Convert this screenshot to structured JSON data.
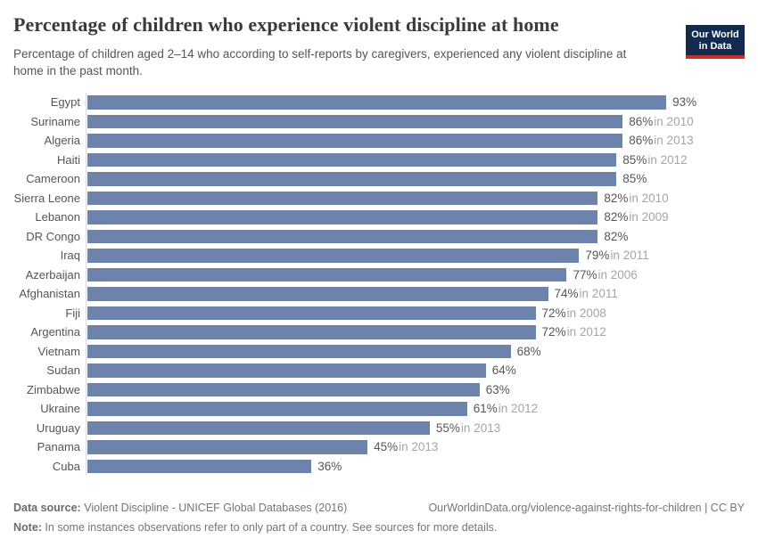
{
  "header": {
    "title": "Percentage of children who experience violent discipline at home",
    "subtitle": "Percentage of children aged 2–14 who according to self-reports by caregivers, experienced any violent discipline at home in the past month.",
    "logo": {
      "line1": "Our World",
      "line2": "in Data",
      "bg_color": "#122b4e",
      "stripe_color": "#d42b20"
    }
  },
  "chart_data": {
    "type": "bar",
    "orientation": "horizontal",
    "title": "Percentage of children who experience violent discipline at home",
    "xlabel": "",
    "ylabel": "",
    "xlim": [
      0,
      100
    ],
    "grid": false,
    "legend": false,
    "bar_color": "#6c83ac",
    "value_suffix": "%",
    "categories": [
      "Egypt",
      "Suriname",
      "Algeria",
      "Haiti",
      "Cameroon",
      "Sierra Leone",
      "Lebanon",
      "DR Congo",
      "Iraq",
      "Azerbaijan",
      "Afghanistan",
      "Fiji",
      "Argentina",
      "Vietnam",
      "Sudan",
      "Zimbabwe",
      "Ukraine",
      "Uruguay",
      "Panama",
      "Cuba"
    ],
    "values": [
      93,
      86,
      86,
      85,
      85,
      82,
      82,
      82,
      79,
      77,
      74,
      72,
      72,
      68,
      64,
      63,
      61,
      55,
      45,
      36
    ],
    "year_labels": [
      "",
      "in 2010",
      "in 2013",
      "in 2012",
      "",
      "in 2010",
      "in 2009",
      "",
      "in 2011",
      "in 2006",
      "in 2011",
      "in 2008",
      "in 2012",
      "",
      "",
      "",
      "in 2012",
      "in 2013",
      "in 2013",
      ""
    ]
  },
  "footer": {
    "data_source_label": "Data source:",
    "data_source": " Violent Discipline - UNICEF Global Databases (2016)",
    "url_text": "OurWorldinData.org/violence-against-rights-for-children | CC BY",
    "note_label": "Note:",
    "note": " In some instances observations refer to only part of a country. See sources for more details."
  }
}
